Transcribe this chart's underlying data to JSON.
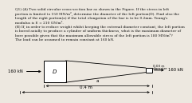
{
  "title_text": "Q1) (A) Two solid circular cross-section bar as shown in the Figure. If the stress in left\nportion is limited to 150 MN/m², determine the diameter of the left portion(D). Find also the\nlength of the right portion(a) if the total elongation of the bar is to be 0.2mm. Young's\nmodulus is E = 210 GN/m².\n(B) If, in order to reduce weight whilst keeping the external diameter constant, the left portion\nis bored axially to produce a cylinder of uniform thickness, what is the maximum diameter of\nbore possible given that the maximum allowable stress of the left portion is 180 MN/m²?\nThe load can be assumed to remain constant at 160 kN.",
  "bg_color": "#ede8e0",
  "left_force": "160 kN",
  "right_force": "160 kN",
  "label_D": "D",
  "small_label_line1": "0.03 m",
  "small_label_line2": "diameter",
  "dim_a_label": "a",
  "dim_total_label": "0.4 m"
}
